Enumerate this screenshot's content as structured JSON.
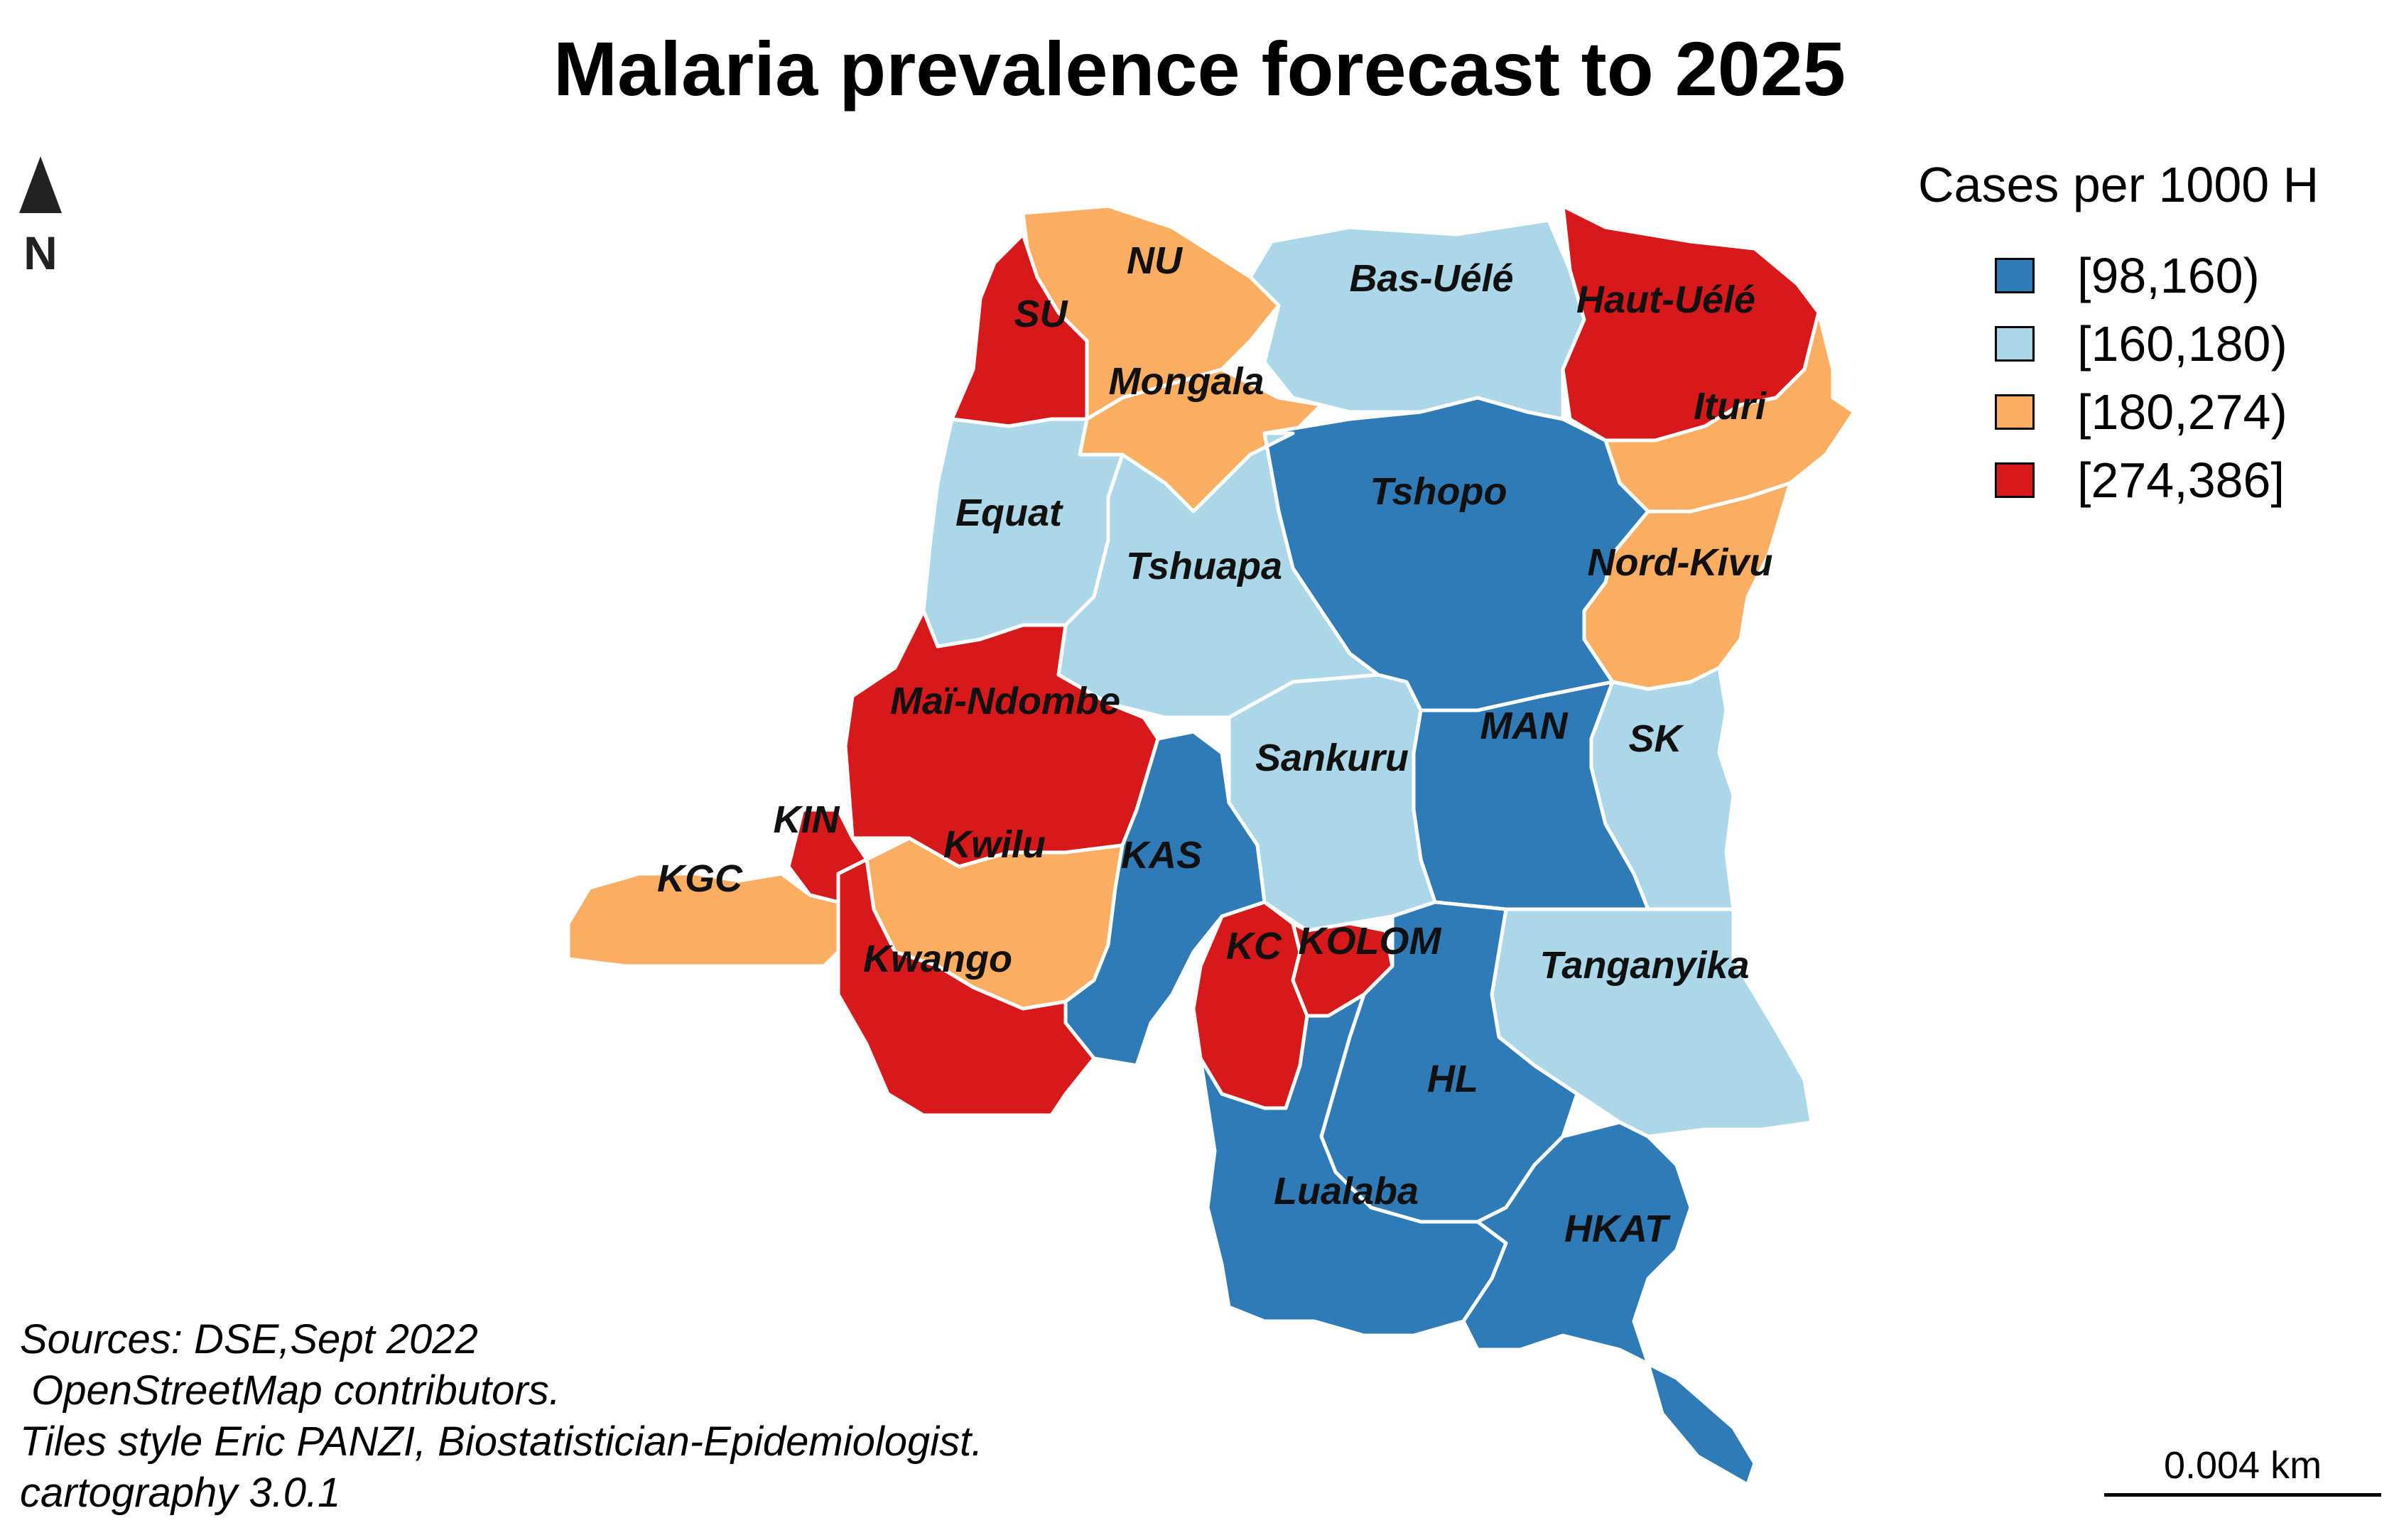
{
  "title": "Malaria prevalence forecast to 2025",
  "north_label": "N",
  "legend": {
    "title": "Cases per 1000 H",
    "classes": [
      {
        "label": "[98,160)",
        "color": "#2E7BB8"
      },
      {
        "label": "[160,180)",
        "color": "#ABD7E8"
      },
      {
        "label": "[180,274)",
        "color": "#FBAE62"
      },
      {
        "label": "[274,386]",
        "color": "#D7191C"
      }
    ]
  },
  "provinces": [
    {
      "name": "NU",
      "class": 2
    },
    {
      "name": "SU",
      "class": 3
    },
    {
      "name": "Bas-Uélé",
      "class": 1
    },
    {
      "name": "Haut-Uélé",
      "class": 3
    },
    {
      "name": "Mongala",
      "class": 2
    },
    {
      "name": "Ituri",
      "class": 2
    },
    {
      "name": "Equat",
      "class": 1
    },
    {
      "name": "Tshopo",
      "class": 0
    },
    {
      "name": "Tshuapa",
      "class": 1
    },
    {
      "name": "Nord-Kivu",
      "class": 2
    },
    {
      "name": "Maï-Ndombe",
      "class": 3
    },
    {
      "name": "MAN",
      "class": 0
    },
    {
      "name": "SK",
      "class": 1
    },
    {
      "name": "Sankuru",
      "class": 1
    },
    {
      "name": "KIN",
      "class": 3
    },
    {
      "name": "Kwilu",
      "class": 2
    },
    {
      "name": "KAS",
      "class": 0
    },
    {
      "name": "KGC",
      "class": 2
    },
    {
      "name": "KC",
      "class": 3
    },
    {
      "name": "KOLOM",
      "class": 3
    },
    {
      "name": "Kwango",
      "class": 3
    },
    {
      "name": "Tanganyika",
      "class": 1
    },
    {
      "name": "HL",
      "class": 0
    },
    {
      "name": "Lualaba",
      "class": 0
    },
    {
      "name": "HKAT",
      "class": 0
    }
  ],
  "sources": "Sources: DSE,Sept 2022\n OpenStreetMap contributors.\nTiles style Eric PANZI, Biostatistician-Epidemiologist.\ncartography 3.0.1",
  "scale_label": "0.004 km"
}
